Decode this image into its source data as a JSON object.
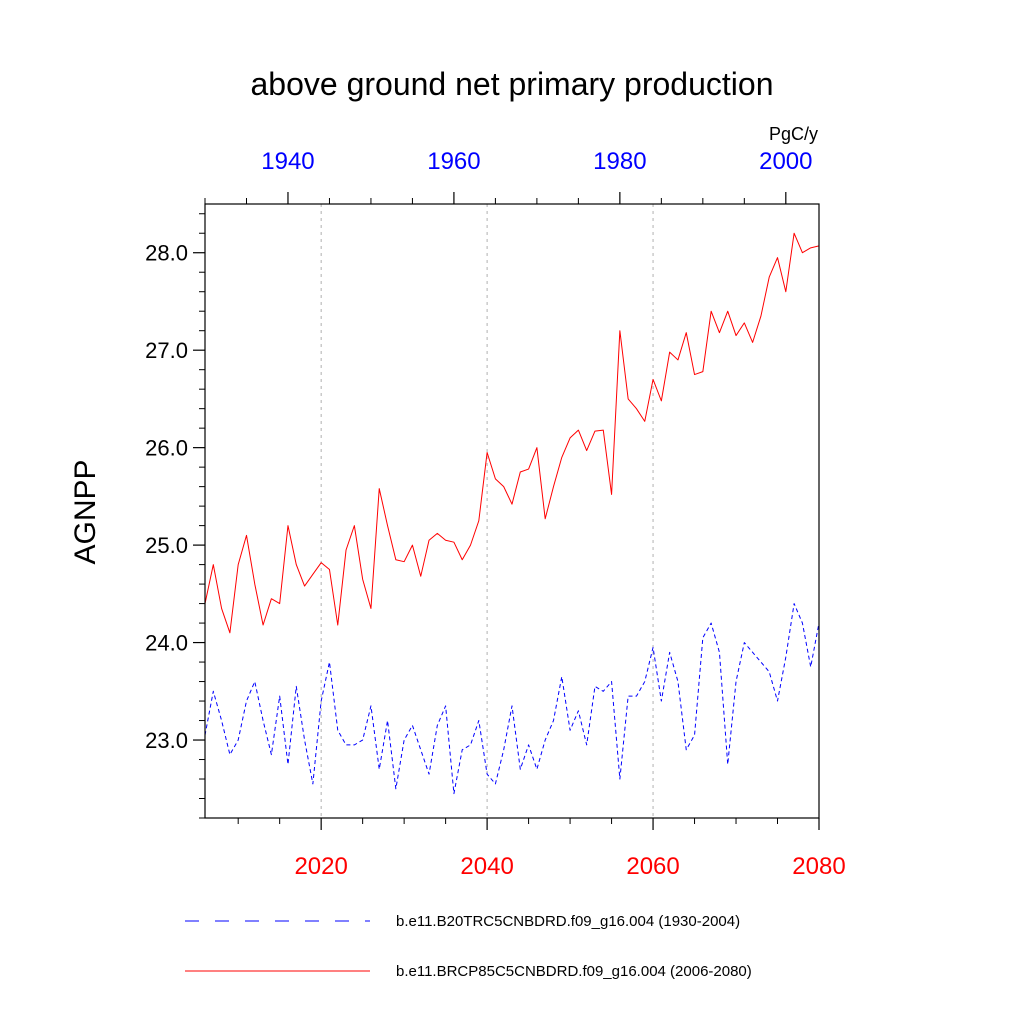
{
  "chart_data": {
    "type": "line",
    "title": "above ground net primary production",
    "units": "PgC/y",
    "ylabel": "AGNPP",
    "ylim": [
      22.2,
      28.5
    ],
    "yticks": [
      23.0,
      24.0,
      25.0,
      26.0,
      27.0,
      28.0
    ],
    "ytick_labels": [
      "23.0",
      "24.0",
      "25.0",
      "26.0",
      "27.0",
      "28.0"
    ],
    "x_bottom": {
      "range": [
        2006,
        2080
      ],
      "ticks": [
        2020,
        2040,
        2060,
        2080
      ],
      "labels": [
        "2020",
        "2040",
        "2060",
        "2080"
      ],
      "color": "#ff0000"
    },
    "x_top": {
      "range": [
        1930,
        2004
      ],
      "ticks": [
        1940,
        1960,
        1980,
        2000
      ],
      "labels": [
        "1940",
        "1960",
        "1980",
        "2000"
      ],
      "color": "#0000ff"
    },
    "gridlines_x_bottom": [
      2020,
      2040,
      2060
    ],
    "legend_position": "bottom",
    "series": [
      {
        "name": "b.e11.B20TRC5CNBDRD.f09_g16.004 (1930-2004)",
        "axis": "top",
        "color": "#0000ff",
        "style": "dashed",
        "x_start": 1930,
        "values": [
          23.05,
          23.5,
          23.2,
          22.85,
          23.0,
          23.4,
          23.6,
          23.2,
          22.85,
          23.45,
          22.75,
          23.55,
          23.0,
          22.55,
          23.4,
          23.8,
          23.1,
          22.95,
          22.95,
          23.0,
          23.35,
          22.7,
          23.2,
          22.5,
          23.0,
          23.15,
          22.9,
          22.65,
          23.15,
          23.35,
          22.45,
          22.9,
          22.95,
          23.2,
          22.65,
          22.55,
          22.9,
          23.35,
          22.7,
          22.95,
          22.7,
          23.0,
          23.2,
          23.65,
          23.1,
          23.3,
          22.95,
          23.55,
          23.5,
          23.6,
          22.6,
          23.45,
          23.45,
          23.6,
          23.95,
          23.4,
          23.9,
          23.6,
          22.9,
          23.05,
          24.05,
          24.2,
          23.9,
          22.75,
          23.6,
          24.0,
          23.9,
          23.8,
          23.7,
          23.4,
          23.85,
          24.4,
          24.2,
          23.75,
          24.2
        ]
      },
      {
        "name": "b.e11.BRCP85C5CNBDRD.f09_g16.004 (2006-2080)",
        "axis": "bottom",
        "color": "#ff0000",
        "style": "solid",
        "x_start": 2006,
        "values": [
          24.4,
          24.8,
          24.35,
          24.1,
          24.8,
          25.1,
          24.6,
          24.18,
          24.45,
          24.4,
          25.2,
          24.8,
          24.58,
          24.7,
          24.82,
          24.75,
          24.18,
          24.95,
          25.2,
          24.65,
          24.35,
          25.58,
          25.2,
          24.85,
          24.83,
          25.0,
          24.68,
          25.05,
          25.12,
          25.05,
          25.03,
          24.85,
          25.0,
          25.25,
          25.95,
          25.68,
          25.6,
          25.42,
          25.75,
          25.78,
          26.0,
          25.27,
          25.6,
          25.9,
          26.1,
          26.18,
          25.97,
          26.17,
          26.18,
          25.52,
          27.2,
          26.5,
          26.4,
          26.27,
          26.7,
          26.48,
          26.98,
          26.9,
          27.18,
          26.75,
          26.78,
          27.4,
          27.18,
          27.4,
          27.15,
          27.28,
          27.08,
          27.35,
          27.75,
          27.95,
          27.6,
          28.2,
          28.0,
          28.05,
          28.07
        ]
      }
    ]
  }
}
